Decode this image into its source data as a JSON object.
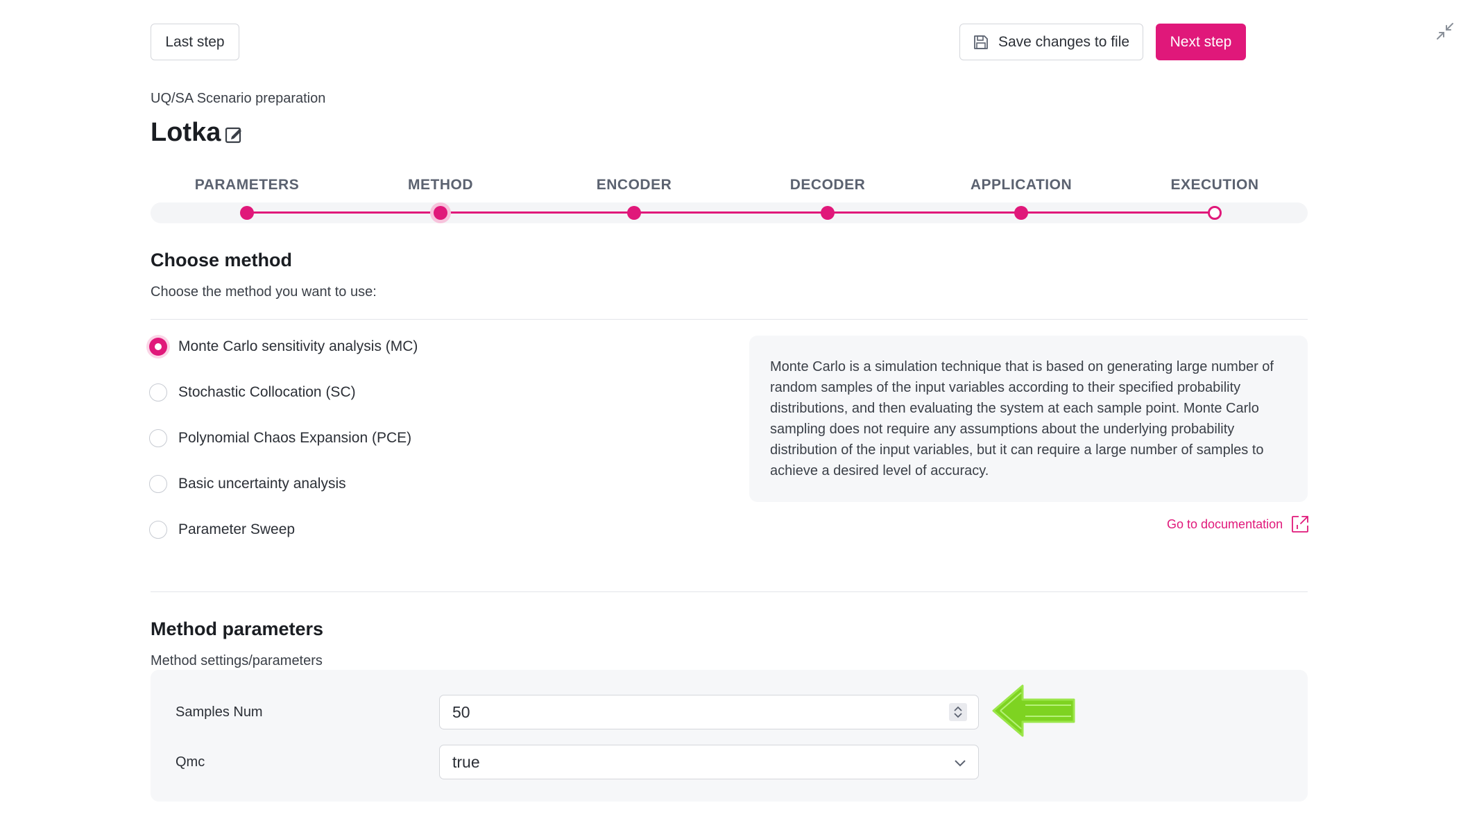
{
  "toolbar": {
    "last_step": "Last step",
    "save_changes": "Save changes to file",
    "next_step": "Next step"
  },
  "header": {
    "subtitle": "UQ/SA Scenario preparation",
    "title": "Lotka"
  },
  "stepper": {
    "steps": [
      {
        "label": "PARAMETERS",
        "state": "done"
      },
      {
        "label": "METHOD",
        "state": "active"
      },
      {
        "label": "ENCODER",
        "state": "done"
      },
      {
        "label": "DECODER",
        "state": "done"
      },
      {
        "label": "APPLICATION",
        "state": "done"
      },
      {
        "label": "EXECUTION",
        "state": "pending"
      }
    ]
  },
  "choose_method": {
    "heading": "Choose method",
    "description": "Choose the method you want to use:",
    "options": [
      {
        "label": "Monte Carlo sensitivity analysis (MC)",
        "selected": true
      },
      {
        "label": "Stochastic Collocation (SC)",
        "selected": false
      },
      {
        "label": "Polynomial Chaos Expansion (PCE)",
        "selected": false
      },
      {
        "label": "Basic uncertainty analysis",
        "selected": false
      },
      {
        "label": "Parameter Sweep",
        "selected": false
      }
    ],
    "info_text": "Monte Carlo is a simulation technique that is based on generating large number of random samples of the input variables according to their specified probability distributions, and then evaluating the system at each sample point. Monte Carlo sampling does not require any assumptions about the underlying probability distribution of the input variables, but it can require a large number of samples to achieve a desired level of accuracy.",
    "doc_link": "Go to documentation"
  },
  "method_parameters": {
    "heading": "Method parameters",
    "description": "Method settings/parameters",
    "samples_num": {
      "label": "Samples Num",
      "value": "50"
    },
    "qmc": {
      "label": "Qmc",
      "value": "true"
    }
  },
  "colors": {
    "accent": "#e0187a",
    "annotation_arrow": "#7ed321"
  }
}
